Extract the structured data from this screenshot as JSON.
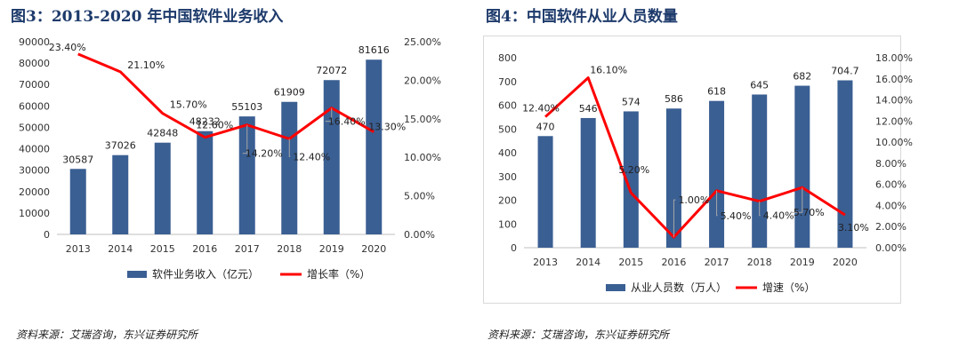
{
  "figures": {
    "fig3_title": "图3：2013-2020 年中国软件业务收入",
    "fig4_title": "图4：中国软件从业人员数量",
    "source_left": "资料来源：艾瑞咨询，东兴证券研究所",
    "source_right": "资料来源：艾瑞咨询，东兴证券研究所"
  },
  "chart_data": [
    {
      "type": "bar",
      "categories": [
        "2013",
        "2014",
        "2015",
        "2016",
        "2017",
        "2018",
        "2019",
        "2020"
      ],
      "series": [
        {
          "name": "软件业务收入（亿元）",
          "type": "bar",
          "axis": "left",
          "values": [
            30587,
            37026,
            42848,
            48232,
            55103,
            61909,
            72072,
            81616
          ],
          "labels": [
            "30587",
            "37026",
            "42848",
            "48232",
            "55103",
            "61909",
            "72072",
            "81616"
          ]
        },
        {
          "name": "增长率（%）",
          "type": "line",
          "axis": "right",
          "values": [
            23.4,
            21.1,
            15.7,
            12.6,
            14.2,
            12.4,
            16.4,
            13.3
          ],
          "labels": [
            "23.40%",
            "21.10%",
            "15.70%",
            "12.60%",
            "14.20%",
            "12.40%",
            "16.40%",
            "13.30%"
          ]
        }
      ],
      "left_axis": {
        "min": 0,
        "max": 90000,
        "step": 10000,
        "ticks": [
          "0",
          "10000",
          "20000",
          "30000",
          "40000",
          "50000",
          "60000",
          "70000",
          "80000",
          "90000"
        ]
      },
      "right_axis": {
        "min": 0,
        "max": 25,
        "step": 5,
        "ticks": [
          "0.00%",
          "5.00%",
          "10.00%",
          "15.00%",
          "20.00%",
          "25.00%"
        ]
      },
      "legend_position": "bottom",
      "colors": {
        "bar": "#3a5f93",
        "line": "#ff0000"
      }
    },
    {
      "type": "bar",
      "categories": [
        "2013",
        "2014",
        "2015",
        "2016",
        "2017",
        "2018",
        "2019",
        "2020"
      ],
      "series": [
        {
          "name": "从业人员数（万人）",
          "type": "bar",
          "axis": "left",
          "values": [
            470,
            546,
            574,
            586,
            618,
            645,
            682,
            704.7
          ],
          "labels": [
            "470",
            "546",
            "574",
            "586",
            "618",
            "645",
            "682",
            "704.7"
          ]
        },
        {
          "name": "增速（%）",
          "type": "line",
          "axis": "right",
          "values": [
            12.4,
            16.1,
            5.2,
            1.0,
            5.4,
            4.4,
            5.7,
            3.1
          ],
          "labels": [
            "12.40%",
            "16.10%",
            "5.20%",
            "1.00%",
            "5.40%",
            "4.40%",
            "5.70%",
            "3.10%"
          ]
        }
      ],
      "left_axis": {
        "min": 0,
        "max": 800,
        "step": 100,
        "ticks": [
          "0",
          "100",
          "200",
          "300",
          "400",
          "500",
          "600",
          "700",
          "800"
        ]
      },
      "right_axis": {
        "min": 0,
        "max": 18,
        "step": 2,
        "ticks": [
          "0.00%",
          "2.00%",
          "4.00%",
          "6.00%",
          "8.00%",
          "10.00%",
          "12.00%",
          "14.00%",
          "16.00%",
          "18.00%"
        ]
      },
      "legend_position": "bottom",
      "colors": {
        "bar": "#3a5f93",
        "line": "#ff0000"
      }
    }
  ]
}
